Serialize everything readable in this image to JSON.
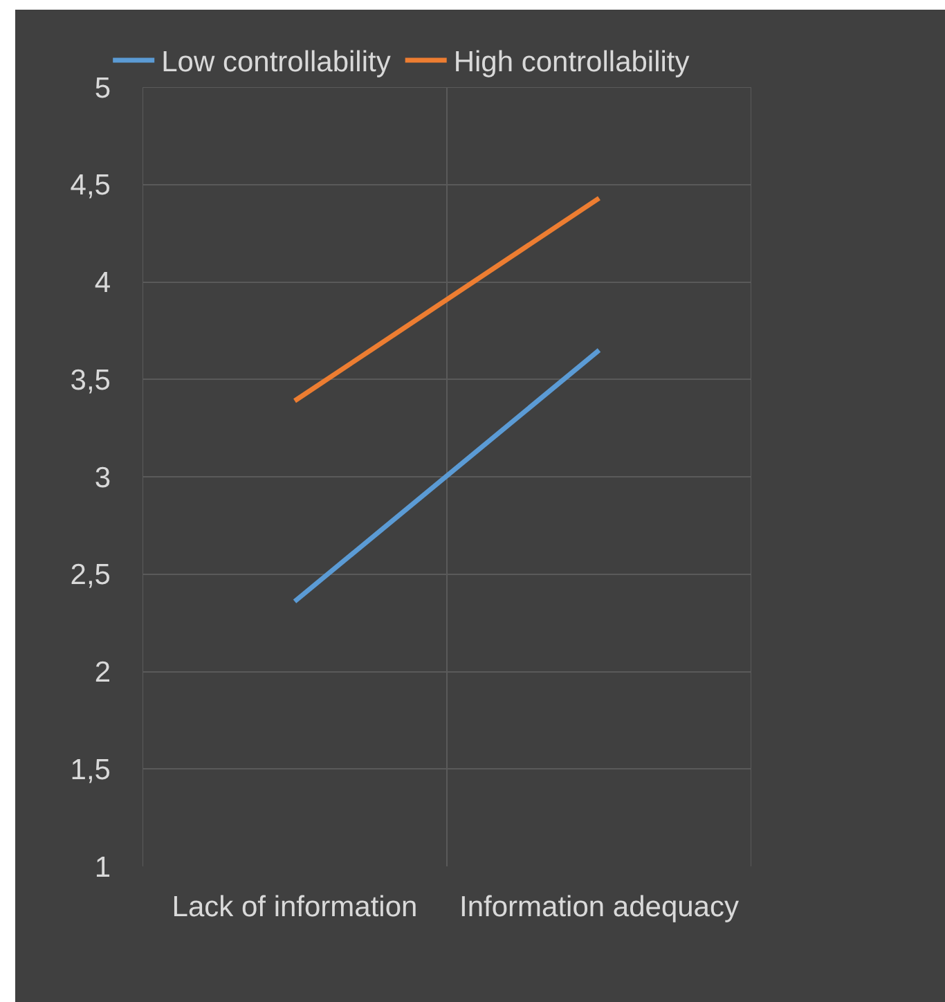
{
  "chart_data": {
    "type": "line",
    "categories": [
      "Lack of information",
      "Information adequacy"
    ],
    "series": [
      {
        "name": "Low controllability",
        "color": "#5b9bd5",
        "values": [
          2.36,
          3.65
        ]
      },
      {
        "name": "High controllability",
        "color": "#ed7d31",
        "values": [
          3.39,
          4.43
        ]
      }
    ],
    "ylim": [
      1,
      5
    ],
    "yticks": [
      1,
      {
        "value": 1.5,
        "label": "1,5"
      },
      2,
      {
        "value": 2.5,
        "label": "2,5"
      },
      3,
      {
        "value": 3.5,
        "label": "3,5"
      },
      4,
      {
        "value": 4.5,
        "label": "4,5"
      },
      5
    ],
    "grid": true,
    "legend": "top",
    "marker": "none",
    "line_style": "solid"
  }
}
